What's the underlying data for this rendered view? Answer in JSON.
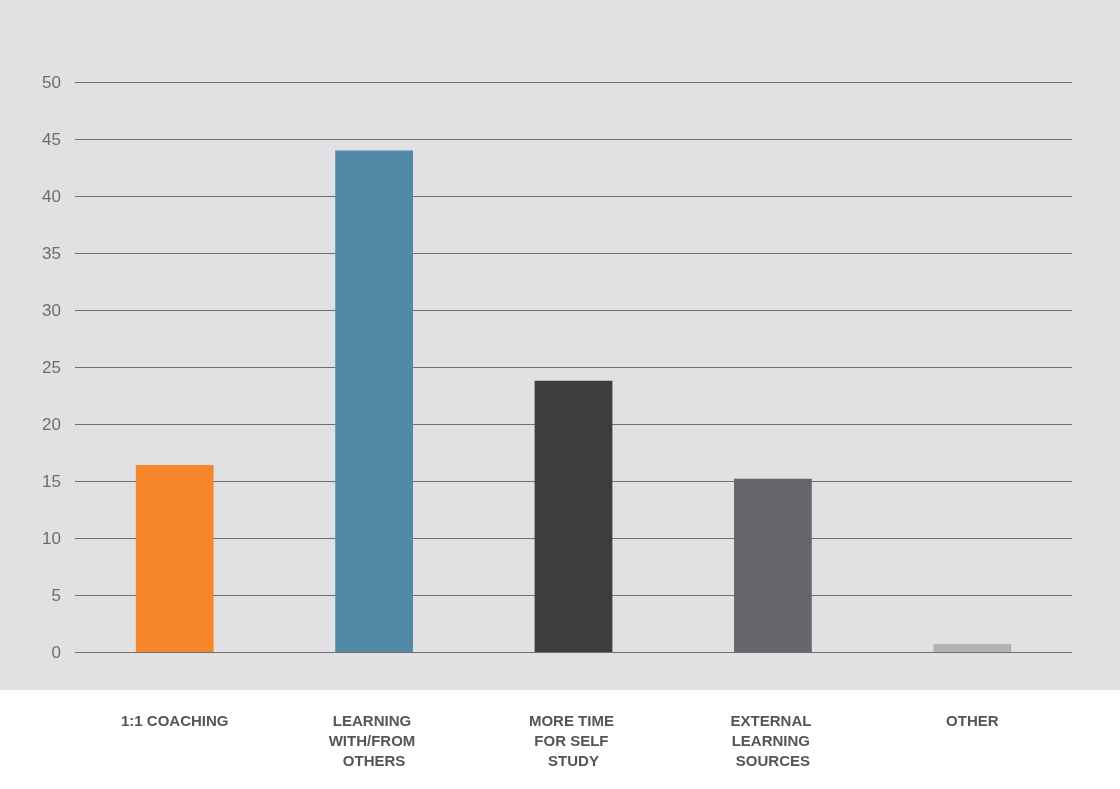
{
  "chart_data": {
    "type": "bar",
    "categories": [
      "1:1 COACHING",
      "LEARNING WITH/FROM OTHERS",
      "MORE TIME FOR SELF STUDY",
      "EXTERNAL LEARNING SOURCES",
      "OTHER"
    ],
    "values": [
      16.4,
      44.0,
      23.8,
      15.2,
      0.7
    ],
    "colors": [
      "#f5862a",
      "#528aa6",
      "#3d3d3d",
      "#67676b",
      "#b3b3b3"
    ],
    "ylim": [
      0,
      50
    ],
    "yticks": [
      0,
      5,
      10,
      15,
      20,
      25,
      30,
      35,
      40,
      45,
      50
    ],
    "grid": "y"
  }
}
